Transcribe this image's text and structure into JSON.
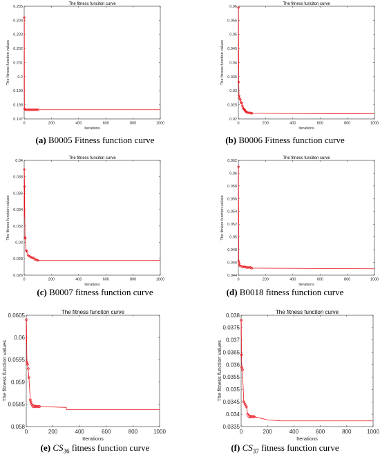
{
  "charts_common": {
    "title": "The fitness funciton curve",
    "xlabel": "Iterations",
    "ylabel": "The fitness function values"
  },
  "captions": [
    {
      "letter": "(a)",
      "text": " B0005 Fitness function curve"
    },
    {
      "letter": "(b)",
      "text": " B0006 Fitness function curve"
    },
    {
      "letter": "(c)",
      "text": " B0007 fitness function curve"
    },
    {
      "letter": "(d)",
      "text": " B0018 fitness function curve"
    },
    {
      "letter": "(e)",
      "cs": "CS",
      "sub": "36",
      "text": " fitness function curve"
    },
    {
      "letter": "(f)",
      "cs": "CS",
      "sub": "37",
      "text": " fitness function curve"
    }
  ],
  "chart_data": [
    {
      "type": "line",
      "title": "The fitness funciton curve",
      "xlabel": "Iterations",
      "ylabel": "The fitness function values",
      "xlim": [
        0,
        1000
      ],
      "ylim": [
        0.197,
        0.205
      ],
      "xticks": [
        0,
        200,
        400,
        600,
        800,
        1000
      ],
      "yticks": [
        0.197,
        0.198,
        0.199,
        0.2,
        0.201,
        0.202,
        0.203,
        0.204,
        0.205
      ],
      "ytick_labels": [
        "0.197",
        "0.198",
        "0.199",
        "0.2",
        "0.201",
        "0.202",
        "0.203",
        "0.204",
        "0.205"
      ],
      "color": "#e8141c",
      "markers": [
        [
          1,
          0.2042
        ],
        [
          3,
          0.1977
        ],
        [
          10,
          0.19765
        ],
        [
          20,
          0.19765
        ],
        [
          30,
          0.19765
        ],
        [
          40,
          0.19765
        ],
        [
          50,
          0.19765
        ],
        [
          60,
          0.19765
        ],
        [
          70,
          0.19765
        ],
        [
          80,
          0.19765
        ],
        [
          90,
          0.19765
        ],
        [
          100,
          0.19765
        ]
      ],
      "x": [
        0,
        1,
        2,
        3,
        10,
        100,
        1000
      ],
      "y": [
        0.1988,
        0.2042,
        0.1978,
        0.1977,
        0.19765,
        0.19765,
        0.19765
      ]
    },
    {
      "type": "line",
      "title": "The fitness funciton curve",
      "xlabel": "Iterations",
      "ylabel": "The fitness function values",
      "xlim": [
        0,
        1000
      ],
      "ylim": [
        0.02,
        0.06
      ],
      "xticks": [
        0,
        200,
        400,
        600,
        800,
        1000
      ],
      "yticks": [
        0.02,
        0.025,
        0.03,
        0.035,
        0.04,
        0.045,
        0.05,
        0.055,
        0.06
      ],
      "ytick_labels": [
        "0.02",
        "0.025",
        "0.03",
        "0.035",
        "0.04",
        "0.045",
        "0.05",
        "0.055",
        "0.06"
      ],
      "color": "#e8141c",
      "markers": [
        [
          1,
          0.0595
        ],
        [
          3,
          0.0331
        ],
        [
          5,
          0.0282
        ],
        [
          10,
          0.0273
        ],
        [
          15,
          0.0268
        ],
        [
          20,
          0.0258
        ],
        [
          25,
          0.0257
        ],
        [
          30,
          0.0246
        ],
        [
          35,
          0.0238
        ],
        [
          40,
          0.0235
        ],
        [
          45,
          0.0233
        ],
        [
          50,
          0.0229
        ],
        [
          55,
          0.0226
        ],
        [
          60,
          0.0224
        ],
        [
          70,
          0.0222
        ],
        [
          80,
          0.0222
        ],
        [
          90,
          0.0221
        ],
        [
          100,
          0.022
        ]
      ],
      "x": [
        0,
        1,
        2,
        3,
        5,
        10,
        20,
        30,
        40,
        50,
        60,
        80,
        100,
        400,
        1000
      ],
      "y": [
        0.038,
        0.0595,
        0.045,
        0.0331,
        0.0282,
        0.0273,
        0.0258,
        0.0246,
        0.0235,
        0.0229,
        0.0224,
        0.0222,
        0.022,
        0.0219,
        0.0218
      ]
    },
    {
      "type": "line",
      "title": "The fitness funciton curve",
      "xlabel": "Iterations",
      "ylabel": "The fitness function values",
      "xlim": [
        0,
        1000
      ],
      "ylim": [
        0.026,
        0.04
      ],
      "xticks": [
        0,
        200,
        400,
        600,
        800,
        1000
      ],
      "yticks": [
        0.026,
        0.028,
        0.03,
        0.032,
        0.034,
        0.036,
        0.038,
        0.04
      ],
      "ytick_labels": [
        "0.026",
        "0.028",
        "0.03",
        "0.032",
        "0.034",
        "0.036",
        "0.038",
        "0.04"
      ],
      "color": "#e8141c",
      "markers": [
        [
          1,
          0.0389
        ],
        [
          3,
          0.0368
        ],
        [
          6,
          0.0306
        ],
        [
          8,
          0.0305
        ],
        [
          15,
          0.029
        ],
        [
          20,
          0.0289
        ],
        [
          30,
          0.0284
        ],
        [
          40,
          0.0283
        ],
        [
          50,
          0.0282
        ],
        [
          60,
          0.0281
        ],
        [
          70,
          0.0281
        ],
        [
          80,
          0.0279
        ],
        [
          90,
          0.0279
        ],
        [
          100,
          0.0278
        ]
      ],
      "x": [
        0,
        1,
        3,
        6,
        15,
        30,
        60,
        100,
        1000
      ],
      "y": [
        0.033,
        0.0389,
        0.0368,
        0.0306,
        0.029,
        0.0284,
        0.0281,
        0.0278,
        0.0278
      ]
    },
    {
      "type": "line",
      "title": "The fitness funciton curve",
      "xlabel": "Iterations",
      "ylabel": "The fitness function values",
      "xlim": [
        0,
        1000
      ],
      "ylim": [
        0.044,
        0.062
      ],
      "xticks": [
        0,
        200,
        400,
        600,
        800,
        1000
      ],
      "yticks": [
        0.044,
        0.046,
        0.048,
        0.05,
        0.052,
        0.054,
        0.056,
        0.058,
        0.06,
        0.062
      ],
      "ytick_labels": [
        "0.044",
        "0.046",
        "0.048",
        "0.05",
        "0.052",
        "0.054",
        "0.056",
        "0.058",
        "0.06",
        "0.062"
      ],
      "color": "#e8141c",
      "markers": [
        [
          1,
          0.061
        ],
        [
          3,
          0.0462
        ],
        [
          6,
          0.0458
        ],
        [
          10,
          0.0455
        ],
        [
          20,
          0.0454
        ],
        [
          30,
          0.0453
        ],
        [
          40,
          0.0453
        ],
        [
          50,
          0.0453
        ],
        [
          60,
          0.0452
        ],
        [
          70,
          0.0452
        ],
        [
          80,
          0.0452
        ],
        [
          90,
          0.0452
        ],
        [
          100,
          0.0451
        ]
      ],
      "x": [
        0,
        1,
        3,
        10,
        100,
        1000
      ],
      "y": [
        0.052,
        0.061,
        0.0462,
        0.0455,
        0.0451,
        0.045
      ]
    },
    {
      "type": "line",
      "title": "The fitness funciton curve",
      "xlabel": "Iterations",
      "ylabel": "The fitness function values",
      "xlim": [
        0,
        1000
      ],
      "ylim": [
        0.058,
        0.0605
      ],
      "xticks": [
        0,
        200,
        400,
        600,
        800,
        1000
      ],
      "yticks": [
        0.058,
        0.0585,
        0.059,
        0.0595,
        0.06,
        0.0605
      ],
      "ytick_labels": [
        "0.058",
        "0.0585",
        "0.059",
        "0.0595",
        "0.06",
        "0.0605"
      ],
      "color": "#e8141c",
      "markers": [
        [
          1,
          0.0604
        ],
        [
          5,
          0.05945
        ],
        [
          10,
          0.0594
        ],
        [
          15,
          0.0593
        ],
        [
          20,
          0.0591
        ],
        [
          30,
          0.0586
        ],
        [
          35,
          0.05855
        ],
        [
          40,
          0.0585
        ],
        [
          50,
          0.05845
        ],
        [
          60,
          0.05845
        ],
        [
          70,
          0.05845
        ],
        [
          80,
          0.05845
        ],
        [
          90,
          0.05845
        ],
        [
          100,
          0.05845
        ]
      ],
      "x": [
        0,
        1,
        5,
        10,
        20,
        30,
        40,
        100,
        300,
        300,
        1000
      ],
      "y": [
        0.0599,
        0.0604,
        0.05945,
        0.0594,
        0.0591,
        0.0586,
        0.0585,
        0.05845,
        0.05843,
        0.05838,
        0.05838
      ]
    },
    {
      "type": "line",
      "title": "The fitness funciton curve",
      "xlabel": "Iterations",
      "ylabel": "The fitness function values",
      "xlim": [
        0,
        1000
      ],
      "ylim": [
        0.0335,
        0.038
      ],
      "xticks": [
        0,
        200,
        400,
        600,
        800,
        1000
      ],
      "yticks": [
        0.0335,
        0.034,
        0.0345,
        0.035,
        0.0355,
        0.036,
        0.0365,
        0.037,
        0.0375,
        0.038
      ],
      "ytick_labels": [
        "0.0335",
        "0.034",
        "0.0345",
        "0.035",
        "0.0355",
        "0.036",
        "0.0365",
        "0.037",
        "0.0375",
        "0.038"
      ],
      "color": "#e8141c",
      "markers": [
        [
          1,
          0.0378
        ],
        [
          3,
          0.0364
        ],
        [
          5,
          0.0359
        ],
        [
          10,
          0.0358
        ],
        [
          20,
          0.0345
        ],
        [
          30,
          0.0344
        ],
        [
          40,
          0.0343
        ],
        [
          50,
          0.034
        ],
        [
          60,
          0.0339
        ],
        [
          70,
          0.0339
        ],
        [
          80,
          0.0339
        ],
        [
          90,
          0.0339
        ],
        [
          100,
          0.0339
        ]
      ],
      "x": [
        0,
        1,
        3,
        5,
        10,
        20,
        40,
        50,
        100,
        200,
        300,
        1000
      ],
      "y": [
        0.0372,
        0.0378,
        0.0364,
        0.0359,
        0.0358,
        0.0345,
        0.0343,
        0.034,
        0.0339,
        0.03377,
        0.03373,
        0.03373
      ]
    }
  ]
}
